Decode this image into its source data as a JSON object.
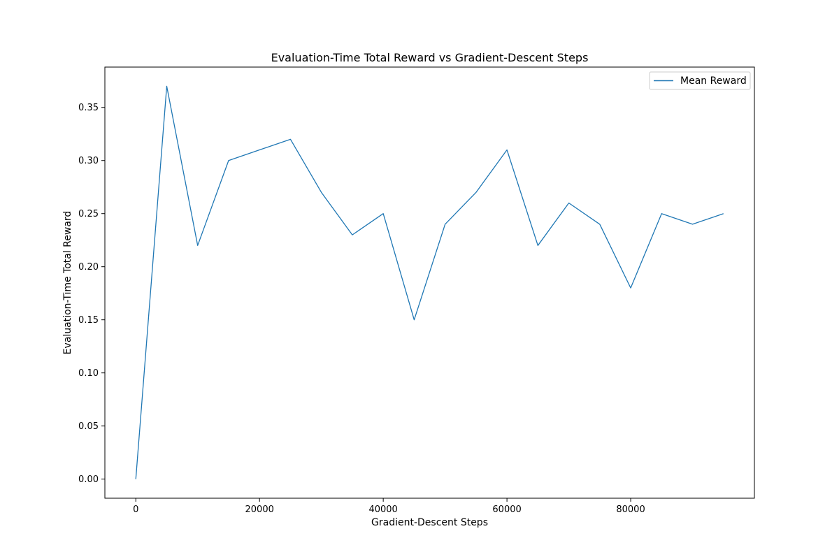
{
  "chart_data": {
    "type": "line",
    "title": "Evaluation-Time Total Reward vs Gradient-Descent Steps",
    "xlabel": "Gradient-Descent Steps",
    "ylabel": "Evaluation-Time Total Reward",
    "xlim": [
      -5000,
      100000
    ],
    "ylim": [
      -0.018,
      0.388
    ],
    "xticks": [
      0,
      20000,
      40000,
      60000,
      80000
    ],
    "yticks": [
      0.0,
      0.05,
      0.1,
      0.15,
      0.2,
      0.25,
      0.3,
      0.35
    ],
    "grid": false,
    "legend_position": "top-right",
    "series": [
      {
        "name": "Mean Reward",
        "color": "#1f77b4",
        "x": [
          0,
          5000,
          10000,
          15000,
          20000,
          25000,
          30000,
          35000,
          40000,
          45000,
          50000,
          55000,
          60000,
          65000,
          70000,
          75000,
          80000,
          85000,
          90000,
          95000
        ],
        "y": [
          0.0,
          0.37,
          0.22,
          0.3,
          0.31,
          0.32,
          0.27,
          0.23,
          0.25,
          0.15,
          0.24,
          0.27,
          0.31,
          0.22,
          0.26,
          0.24,
          0.18,
          0.25,
          0.24,
          0.25
        ]
      }
    ]
  }
}
